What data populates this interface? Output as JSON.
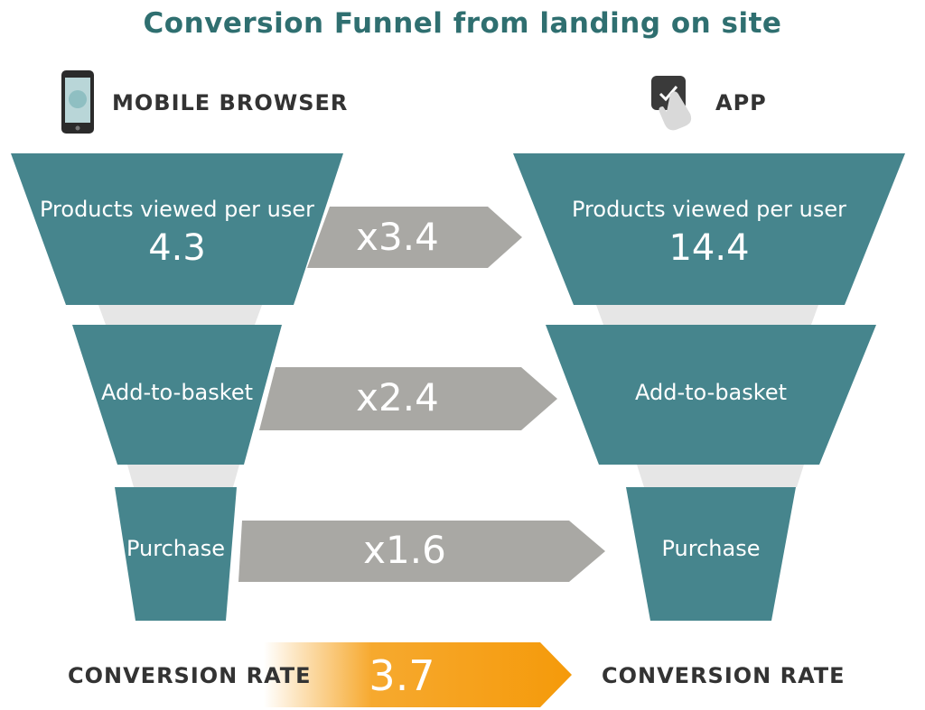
{
  "title": "Conversion Funnel from landing on site",
  "colors": {
    "funnel": "#46858d",
    "neck": "#e6e6e6",
    "arrow": "#a9a8a4",
    "orange": "#f59a0a",
    "title": "#2f6f70"
  },
  "columns": {
    "left": {
      "heading": "MOBILE BROWSER",
      "icon": "smartphone-icon",
      "stages": [
        {
          "label": "Products viewed per user",
          "value": "4.3"
        },
        {
          "label": "Add-to-basket"
        },
        {
          "label": "Purchase"
        }
      ]
    },
    "right": {
      "heading": "APP",
      "icon": "app-tap-icon",
      "stages": [
        {
          "label": "Products viewed per user",
          "value": "14.4"
        },
        {
          "label": "Add-to-basket"
        },
        {
          "label": "Purchase"
        }
      ]
    }
  },
  "multipliers": [
    "x3.4",
    "x2.4",
    "x1.6"
  ],
  "conversion": {
    "left_label": "CONVERSION RATE",
    "right_label": "CONVERSION RATE",
    "value": "3.7"
  }
}
